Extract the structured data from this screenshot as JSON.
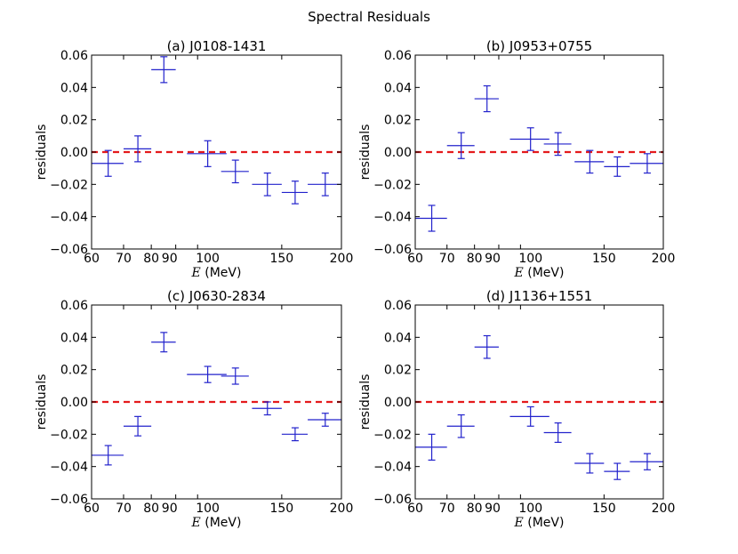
{
  "chart_data": {
    "type": "scatter",
    "title": "Spectral Residuals",
    "xlabel_symbol": "E",
    "xlabel_unit": "(MeV)",
    "ylabel": "residuals",
    "xscale": "log",
    "xlim": [
      60,
      200
    ],
    "ylim": [
      -0.06,
      0.06
    ],
    "xticks": [
      60,
      70,
      80,
      90,
      100,
      150,
      200
    ],
    "xtick_labels": [
      "60",
      "70",
      "80",
      "90",
      "100",
      "150",
      "200"
    ],
    "yticks": [
      -0.06,
      -0.04,
      -0.02,
      0.0,
      0.02,
      0.04,
      0.06
    ],
    "ytick_labels": [
      "−0.06",
      "−0.04",
      "−0.02",
      "0.00",
      "0.02",
      "0.04",
      "0.06"
    ],
    "reference_line": 0.0,
    "colors": {
      "points": "#2222cc",
      "reference": "#e41a1c"
    },
    "panels": [
      {
        "title": "(a) J0108-1431",
        "points": [
          {
            "x": 65,
            "xlo": 60,
            "xhi": 70,
            "y": -0.007,
            "yerr": 0.008
          },
          {
            "x": 75,
            "xlo": 70,
            "xhi": 80,
            "y": 0.002,
            "yerr": 0.008
          },
          {
            "x": 85,
            "xlo": 80,
            "xhi": 90,
            "y": 0.051,
            "yerr": 0.008
          },
          {
            "x": 105,
            "xlo": 95,
            "xhi": 115,
            "y": -0.001,
            "yerr": 0.008
          },
          {
            "x": 120,
            "xlo": 112,
            "xhi": 128,
            "y": -0.012,
            "yerr": 0.007
          },
          {
            "x": 140,
            "xlo": 130,
            "xhi": 150,
            "y": -0.02,
            "yerr": 0.007
          },
          {
            "x": 160,
            "xlo": 150,
            "xhi": 170,
            "y": -0.025,
            "yerr": 0.007
          },
          {
            "x": 185,
            "xlo": 170,
            "xhi": 200,
            "y": -0.02,
            "yerr": 0.007
          }
        ]
      },
      {
        "title": "(b) J0953+0755",
        "points": [
          {
            "x": 65,
            "xlo": 60,
            "xhi": 70,
            "y": -0.041,
            "yerr": 0.008
          },
          {
            "x": 75,
            "xlo": 70,
            "xhi": 80,
            "y": 0.004,
            "yerr": 0.008
          },
          {
            "x": 85,
            "xlo": 80,
            "xhi": 90,
            "y": 0.033,
            "yerr": 0.008
          },
          {
            "x": 105,
            "xlo": 95,
            "xhi": 115,
            "y": 0.008,
            "yerr": 0.007
          },
          {
            "x": 120,
            "xlo": 112,
            "xhi": 128,
            "y": 0.005,
            "yerr": 0.007
          },
          {
            "x": 140,
            "xlo": 130,
            "xhi": 150,
            "y": -0.006,
            "yerr": 0.007
          },
          {
            "x": 160,
            "xlo": 150,
            "xhi": 170,
            "y": -0.009,
            "yerr": 0.006
          },
          {
            "x": 185,
            "xlo": 170,
            "xhi": 200,
            "y": -0.007,
            "yerr": 0.006
          }
        ]
      },
      {
        "title": "(c) J0630-2834",
        "points": [
          {
            "x": 65,
            "xlo": 60,
            "xhi": 70,
            "y": -0.033,
            "yerr": 0.006
          },
          {
            "x": 75,
            "xlo": 70,
            "xhi": 80,
            "y": -0.015,
            "yerr": 0.006
          },
          {
            "x": 85,
            "xlo": 80,
            "xhi": 90,
            "y": 0.037,
            "yerr": 0.006
          },
          {
            "x": 105,
            "xlo": 95,
            "xhi": 115,
            "y": 0.017,
            "yerr": 0.005
          },
          {
            "x": 120,
            "xlo": 112,
            "xhi": 128,
            "y": 0.016,
            "yerr": 0.005
          },
          {
            "x": 140,
            "xlo": 130,
            "xhi": 150,
            "y": -0.004,
            "yerr": 0.004
          },
          {
            "x": 160,
            "xlo": 150,
            "xhi": 170,
            "y": -0.02,
            "yerr": 0.004
          },
          {
            "x": 185,
            "xlo": 170,
            "xhi": 200,
            "y": -0.011,
            "yerr": 0.004
          }
        ]
      },
      {
        "title": "(d) J1136+1551",
        "points": [
          {
            "x": 65,
            "xlo": 60,
            "xhi": 70,
            "y": -0.028,
            "yerr": 0.008
          },
          {
            "x": 75,
            "xlo": 70,
            "xhi": 80,
            "y": -0.015,
            "yerr": 0.007
          },
          {
            "x": 85,
            "xlo": 80,
            "xhi": 90,
            "y": 0.034,
            "yerr": 0.007
          },
          {
            "x": 105,
            "xlo": 95,
            "xhi": 115,
            "y": -0.009,
            "yerr": 0.006
          },
          {
            "x": 120,
            "xlo": 112,
            "xhi": 128,
            "y": -0.019,
            "yerr": 0.006
          },
          {
            "x": 140,
            "xlo": 130,
            "xhi": 150,
            "y": -0.038,
            "yerr": 0.006
          },
          {
            "x": 160,
            "xlo": 150,
            "xhi": 170,
            "y": -0.043,
            "yerr": 0.005
          },
          {
            "x": 185,
            "xlo": 170,
            "xhi": 200,
            "y": -0.037,
            "yerr": 0.005
          }
        ]
      }
    ]
  }
}
